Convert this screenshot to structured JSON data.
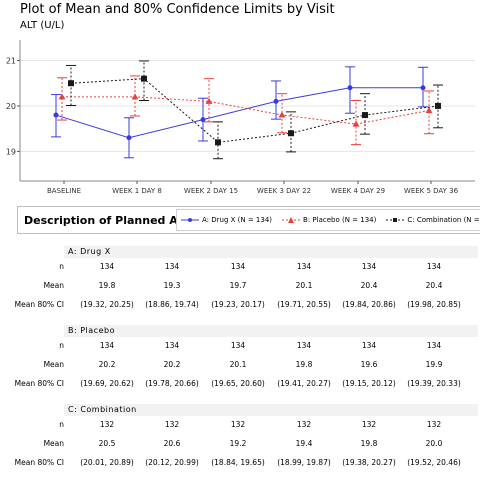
{
  "title": "Plot of Mean and 80% Confidence Limits by Visit",
  "ylabel": "ALT (U/L)",
  "legend_heading": "Description of Planned Arm",
  "colors": {
    "drug": "#3b3bdb",
    "placebo": "#e8413c",
    "combo": "#1a1a1a"
  },
  "chart_data": {
    "type": "line",
    "title": "Plot of Mean and 80% Confidence Limits by Visit",
    "ylabel": "ALT (U/L)",
    "xlabel": "",
    "ylim": [
      18.35,
      21.45
    ],
    "yticks": [
      19,
      20,
      21
    ],
    "categories": [
      "BASELINE",
      "WEEK 1 DAY 8",
      "WEEK 2 DAY 15",
      "WEEK 3 DAY 22",
      "WEEK 4 DAY 29",
      "WEEK 5 DAY 36"
    ],
    "series": [
      {
        "name": "A: Drug X (N = 134)",
        "key": "drug",
        "marker": "circle",
        "dash": false,
        "values": [
          19.8,
          19.3,
          19.7,
          20.1,
          20.4,
          20.4
        ],
        "lower": [
          19.32,
          18.86,
          19.23,
          19.71,
          19.84,
          19.98
        ],
        "upper": [
          20.25,
          19.74,
          20.17,
          20.55,
          20.86,
          20.85
        ]
      },
      {
        "name": "B: Placebo (N = 134)",
        "key": "placebo",
        "marker": "triangle",
        "dash": true,
        "values": [
          20.2,
          20.2,
          20.1,
          19.8,
          19.6,
          19.9
        ],
        "lower": [
          19.69,
          19.78,
          19.65,
          19.41,
          19.15,
          19.39
        ],
        "upper": [
          20.62,
          20.66,
          20.6,
          20.27,
          20.12,
          20.33
        ]
      },
      {
        "name": "C: Combination (N = 132)",
        "key": "combo",
        "marker": "square",
        "dash": true,
        "values": [
          20.5,
          20.6,
          19.2,
          19.4,
          19.8,
          20.0
        ],
        "lower": [
          20.01,
          20.12,
          18.84,
          18.99,
          19.38,
          19.52
        ],
        "upper": [
          20.89,
          20.99,
          19.65,
          19.87,
          20.27,
          20.46
        ]
      }
    ]
  },
  "table": {
    "row_labels": [
      "n",
      "Mean",
      "Mean 80% CI"
    ],
    "sections": [
      {
        "header": "A: Drug X",
        "n": [
          "134",
          "134",
          "134",
          "134",
          "134",
          "134"
        ],
        "mean": [
          "19.8",
          "19.3",
          "19.7",
          "20.1",
          "20.4",
          "20.4"
        ],
        "ci": [
          "(19.32, 20.25)",
          "(18.86, 19.74)",
          "(19.23, 20.17)",
          "(19.71, 20.55)",
          "(19.84, 20.86)",
          "(19.98, 20.85)"
        ]
      },
      {
        "header": "B: Placebo",
        "n": [
          "134",
          "134",
          "134",
          "134",
          "134",
          "134"
        ],
        "mean": [
          "20.2",
          "20.2",
          "20.1",
          "19.8",
          "19.6",
          "19.9"
        ],
        "ci": [
          "(19.69, 20.62)",
          "(19.78, 20.66)",
          "(19.65, 20.60)",
          "(19.41, 20.27)",
          "(19.15, 20.12)",
          "(19.39, 20.33)"
        ]
      },
      {
        "header": "C: Combination",
        "n": [
          "132",
          "132",
          "132",
          "132",
          "132",
          "132"
        ],
        "mean": [
          "20.5",
          "20.6",
          "19.2",
          "19.4",
          "19.8",
          "20.0"
        ],
        "ci": [
          "(20.01, 20.89)",
          "(20.12, 20.99)",
          "(18.84, 19.65)",
          "(18.99, 19.87)",
          "(19.38, 20.27)",
          "(19.52, 20.46)"
        ]
      }
    ]
  }
}
